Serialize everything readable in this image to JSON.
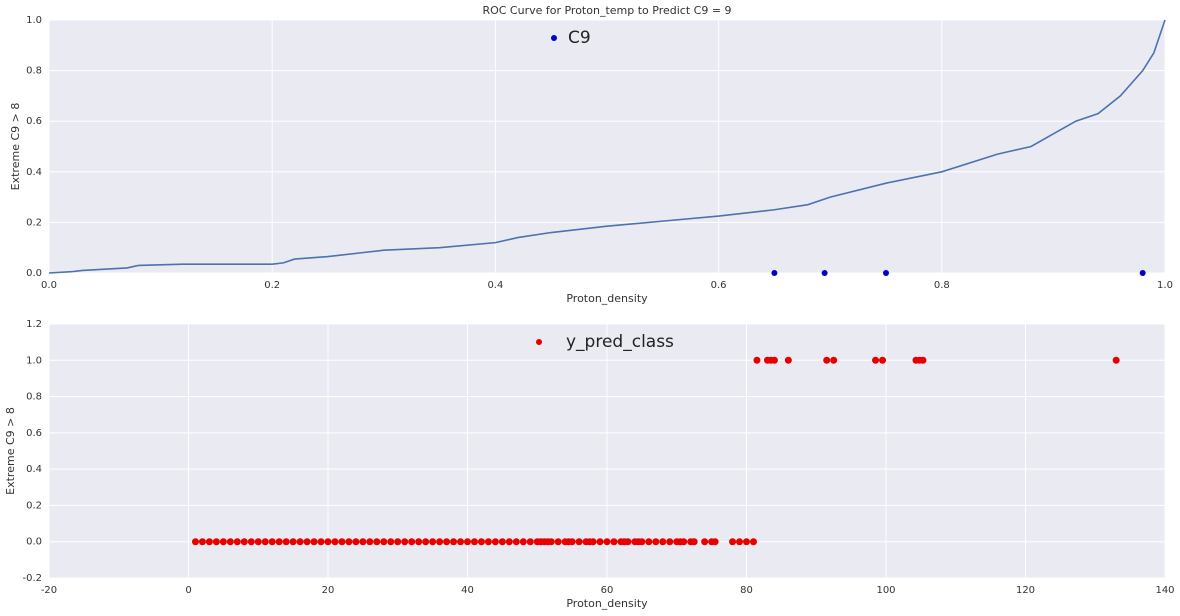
{
  "chart_data": [
    {
      "type": "line",
      "title": "ROC Curve for Proton_temp to Predict C9 = 9",
      "xlabel": "Proton_density",
      "ylabel": "Extreme C9 > 8",
      "xlim": [
        0,
        1
      ],
      "ylim": [
        0,
        1
      ],
      "xticks": [
        {
          "value": 0,
          "label": "0.0"
        },
        {
          "value": 0.2,
          "label": "0.2"
        },
        {
          "value": 0.4,
          "label": "0.4"
        },
        {
          "value": 0.6,
          "label": "0.6"
        },
        {
          "value": 0.8,
          "label": "0.8"
        },
        {
          "value": 1,
          "label": "1.0"
        }
      ],
      "yticks": [
        {
          "value": 0,
          "label": "0.0"
        },
        {
          "value": 0.2,
          "label": "0.2"
        },
        {
          "value": 0.4,
          "label": "0.4"
        },
        {
          "value": 0.6,
          "label": "0.6"
        },
        {
          "value": 0.8,
          "label": "0.8"
        },
        {
          "value": 1,
          "label": "1.0"
        }
      ],
      "grid": true,
      "legend": "upper center",
      "series": [
        {
          "type": "line",
          "color": "#4c72b0",
          "x": [
            0,
            0.02,
            0.03,
            0.05,
            0.07,
            0.08,
            0.12,
            0.2,
            0.21,
            0.22,
            0.25,
            0.28,
            0.3,
            0.35,
            0.4,
            0.42,
            0.45,
            0.5,
            0.55,
            0.6,
            0.62,
            0.65,
            0.68,
            0.7,
            0.75,
            0.8,
            0.85,
            0.88,
            0.9,
            0.92,
            0.94,
            0.96,
            0.98,
            0.99,
            1.0
          ],
          "values": [
            0,
            0.005,
            0.01,
            0.015,
            0.02,
            0.03,
            0.035,
            0.035,
            0.04,
            0.055,
            0.065,
            0.08,
            0.09,
            0.1,
            0.12,
            0.14,
            0.16,
            0.185,
            0.205,
            0.225,
            0.235,
            0.25,
            0.27,
            0.3,
            0.355,
            0.4,
            0.47,
            0.5,
            0.55,
            0.6,
            0.63,
            0.7,
            0.8,
            0.87,
            1.0
          ]
        },
        {
          "type": "scatter",
          "name": "C9",
          "color": "#0000cc",
          "x": [
            0.65,
            0.695,
            0.75,
            0.98
          ],
          "values": [
            0,
            0,
            0,
            0
          ]
        }
      ]
    },
    {
      "type": "scatter",
      "xlabel": "Proton_density",
      "ylabel": "Extreme C9 > 8",
      "xlim": [
        -20,
        140
      ],
      "ylim": [
        -0.2,
        1.2
      ],
      "xticks": [
        -20,
        0,
        20,
        40,
        60,
        80,
        100,
        120,
        140
      ],
      "yticks": [
        {
          "value": -0.2,
          "label": "-0.2"
        },
        {
          "value": 0,
          "label": "0.0"
        },
        {
          "value": 0.2,
          "label": "0.2"
        },
        {
          "value": 0.4,
          "label": "0.4"
        },
        {
          "value": 0.6,
          "label": "0.6"
        },
        {
          "value": 0.8,
          "label": "0.8"
        },
        {
          "value": 1,
          "label": "1.0"
        },
        {
          "value": 1.2,
          "label": "1.2"
        }
      ],
      "grid": true,
      "legend": "upper center",
      "series": [
        {
          "type": "scatter",
          "name": "y_pred_class",
          "color": "#e80000",
          "x": [
            1,
            2,
            3,
            4,
            5,
            6,
            7,
            8,
            9,
            10,
            11,
            12,
            13,
            14,
            15,
            16,
            17,
            18,
            19,
            20,
            21,
            22,
            23,
            24,
            25,
            26,
            27,
            28,
            29,
            30,
            31,
            32,
            33,
            34,
            35,
            36,
            37,
            38,
            39,
            40,
            41,
            42,
            43,
            44,
            45,
            46,
            47,
            48,
            49,
            50,
            50.5,
            51,
            51.5,
            52,
            53,
            54,
            54.5,
            55,
            56,
            57,
            57.5,
            58,
            59,
            60,
            61,
            62,
            62.5,
            63,
            64,
            64.5,
            65,
            66,
            67,
            68,
            69,
            70,
            70.5,
            71,
            72,
            72.5,
            74,
            75,
            75.5,
            78,
            79,
            80,
            81,
            81.5,
            83,
            83.5,
            84,
            86,
            91.5,
            92.5,
            98.5,
            99.5,
            104.3,
            104.8,
            105.3,
            133
          ],
          "values": [
            0,
            0,
            0,
            0,
            0,
            0,
            0,
            0,
            0,
            0,
            0,
            0,
            0,
            0,
            0,
            0,
            0,
            0,
            0,
            0,
            0,
            0,
            0,
            0,
            0,
            0,
            0,
            0,
            0,
            0,
            0,
            0,
            0,
            0,
            0,
            0,
            0,
            0,
            0,
            0,
            0,
            0,
            0,
            0,
            0,
            0,
            0,
            0,
            0,
            0,
            0,
            0,
            0,
            0,
            0,
            0,
            0,
            0,
            0,
            0,
            0,
            0,
            0,
            0,
            0,
            0,
            0,
            0,
            0,
            0,
            0,
            0,
            0,
            0,
            0,
            0,
            0,
            0,
            0,
            0,
            0,
            0,
            0,
            0,
            0,
            0,
            0,
            1,
            1,
            1,
            1,
            1,
            1,
            1,
            1,
            1,
            1,
            1,
            1,
            1
          ]
        }
      ]
    }
  ]
}
